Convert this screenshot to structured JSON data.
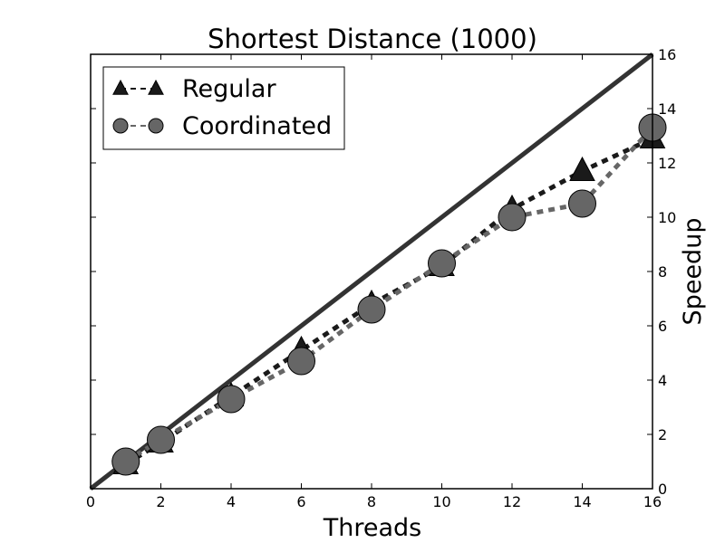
{
  "chart_data": {
    "type": "line",
    "title": "Shortest Distance (1000)",
    "xlabel": "Threads",
    "ylabel": "Speedup",
    "xlim": [
      0,
      16
    ],
    "ylim": [
      0,
      16
    ],
    "x_ticks": [
      "0",
      "2",
      "4",
      "6",
      "8",
      "10",
      "12",
      "14",
      "16"
    ],
    "y_ticks": [
      "0",
      "2",
      "4",
      "6",
      "8",
      "10",
      "12",
      "14",
      "16"
    ],
    "y_axis_side": "right",
    "grid": false,
    "legend_position": "top-left",
    "reference_line": {
      "x": [
        0,
        16
      ],
      "y": [
        0,
        16
      ],
      "color": "#333333"
    },
    "series": [
      {
        "name": "Regular",
        "marker": "triangle",
        "color": "#1a1a1a",
        "x": [
          1,
          2,
          4,
          6,
          8,
          10,
          12,
          14,
          16
        ],
        "y": [
          0.9,
          1.7,
          3.4,
          5.1,
          6.8,
          8.2,
          10.3,
          11.7,
          12.9
        ]
      },
      {
        "name": "Coordinated",
        "marker": "circle",
        "color": "#666666",
        "x": [
          1,
          2,
          4,
          6,
          8,
          10,
          12,
          14,
          16
        ],
        "y": [
          1.0,
          1.8,
          3.3,
          4.7,
          6.6,
          8.3,
          10.0,
          10.5,
          13.3
        ]
      }
    ]
  }
}
